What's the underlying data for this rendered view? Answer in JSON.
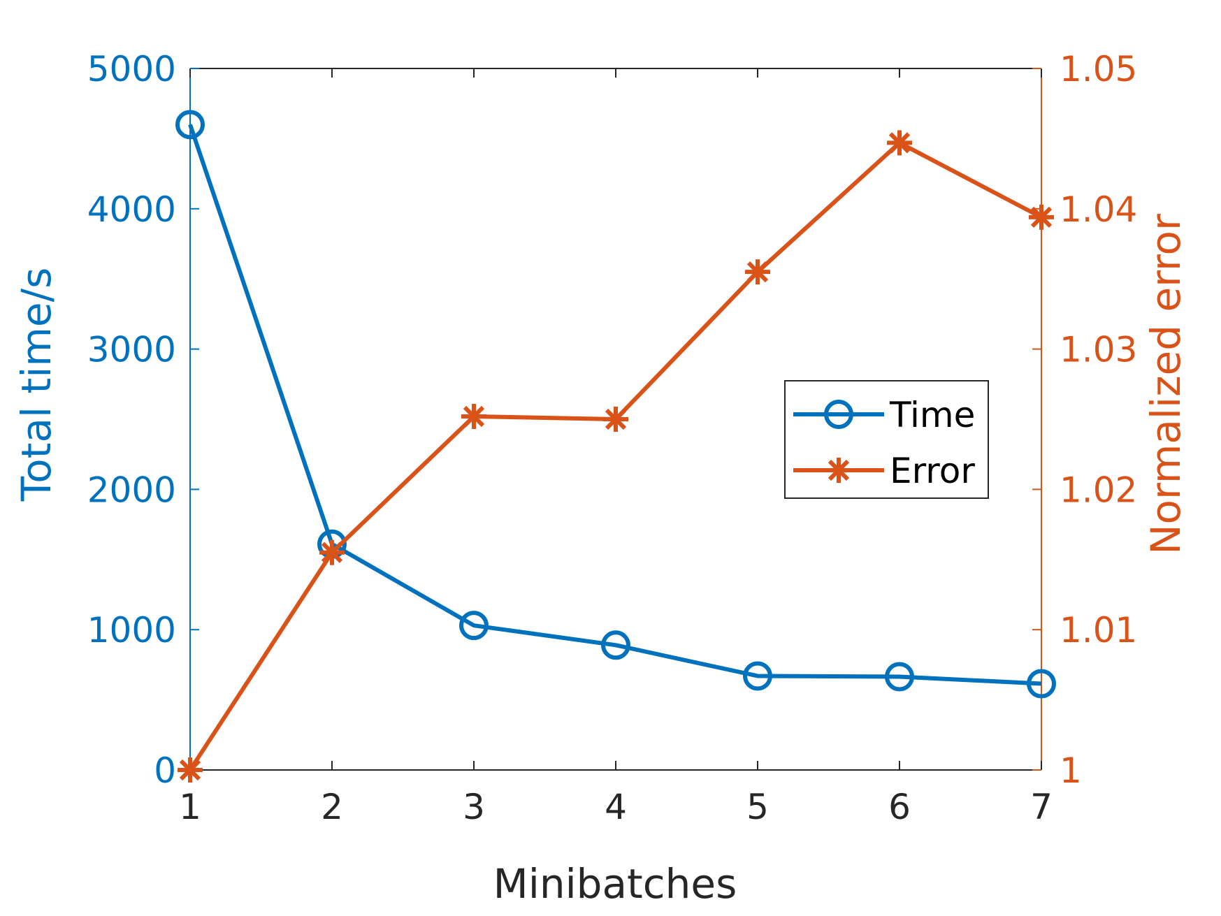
{
  "chart_data": {
    "type": "line",
    "title": "",
    "xlabel": "Minibatches",
    "x": [
      1,
      2,
      3,
      4,
      5,
      6,
      7
    ],
    "x_ticks": [
      "1",
      "2",
      "3",
      "4",
      "5",
      "6",
      "7"
    ],
    "xlim": [
      1,
      7
    ],
    "y_left": {
      "label": "Total time/s",
      "lim": [
        0,
        5000
      ],
      "ticks": [
        "0",
        "1000",
        "2000",
        "3000",
        "4000",
        "5000"
      ],
      "tick_values": [
        0,
        1000,
        2000,
        3000,
        4000,
        5000
      ],
      "color": "#0072BD"
    },
    "y_right": {
      "label": "Normalized error",
      "lim": [
        1,
        1.05
      ],
      "ticks": [
        "1",
        "1.01",
        "1.02",
        "1.03",
        "1.04",
        "1.05"
      ],
      "tick_values": [
        1,
        1.01,
        1.02,
        1.03,
        1.04,
        1.05
      ],
      "color": "#D95319"
    },
    "series": [
      {
        "name": "Time",
        "axis": "left",
        "marker": "circle",
        "color": "#0072BD",
        "values": [
          4600,
          1610,
          1030,
          890,
          670,
          665,
          615
        ]
      },
      {
        "name": "Error",
        "axis": "right",
        "marker": "asterisk",
        "color": "#D95319",
        "values": [
          1.0,
          1.0155,
          1.0252,
          1.025,
          1.0355,
          1.0447,
          1.0394
        ]
      }
    ],
    "legend": {
      "position": "center-right",
      "entries": [
        "Time",
        "Error"
      ]
    },
    "grid": false,
    "axis_color": "#262626"
  }
}
